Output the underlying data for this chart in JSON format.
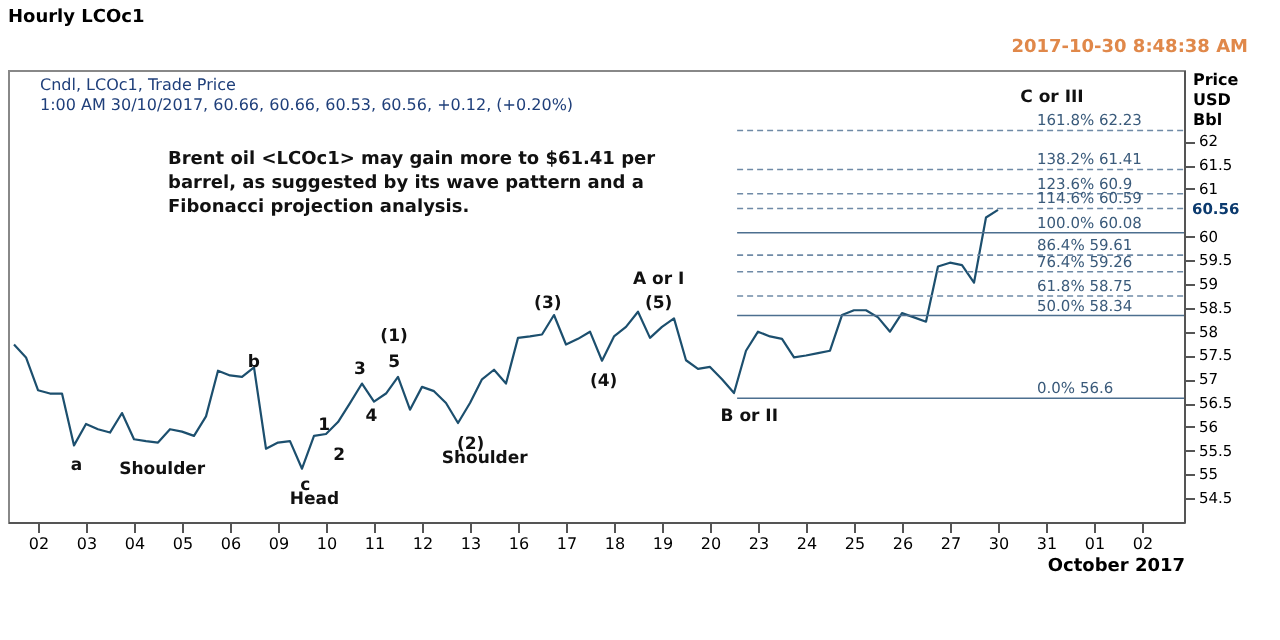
{
  "chart_data": {
    "type": "line",
    "title": "Hourly LCOc1",
    "subtitle": "Cndl, LCOc1, Trade Price",
    "xlabel": "October 2017",
    "ylabel": "Price USD Bbl",
    "categories": [
      null,
      null,
      "02",
      null,
      null,
      null,
      "03",
      null,
      null,
      null,
      "04",
      null,
      null,
      null,
      "05",
      null,
      null,
      null,
      "06",
      null,
      null,
      null,
      "09",
      null,
      null,
      null,
      "10",
      null,
      null,
      null,
      "11",
      null,
      null,
      null,
      "12",
      null,
      null,
      null,
      "13",
      null,
      null,
      null,
      "16",
      null,
      null,
      null,
      "17",
      null,
      null,
      null,
      "18",
      null,
      null,
      null,
      "19",
      null,
      null,
      null,
      "20",
      null,
      null,
      null,
      "23",
      null,
      null,
      null,
      "24",
      null,
      null,
      null,
      "25",
      null,
      null,
      null,
      "26",
      null,
      null,
      null,
      "27",
      null,
      null,
      null,
      "30",
      null,
      null,
      null,
      "31",
      null,
      null,
      null,
      "01",
      null,
      null,
      null,
      "02",
      null,
      null,
      null
    ],
    "series": [
      {
        "color": "#1c4f6e",
        "values": [
          57.73,
          57.46,
          56.77,
          56.7,
          56.7,
          55.61,
          56.06,
          55.95,
          55.88,
          56.29,
          55.74,
          55.7,
          55.67,
          55.95,
          55.9,
          55.81,
          56.22,
          57.18,
          57.08,
          57.05,
          57.25,
          55.54,
          55.67,
          55.7,
          55.12,
          55.81,
          55.85,
          56.1,
          56.5,
          56.91,
          56.53,
          56.7,
          57.05,
          56.36,
          56.84,
          56.75,
          56.5,
          56.08,
          56.5,
          57.0,
          57.2,
          56.91,
          57.87,
          57.9,
          57.94,
          58.35,
          57.73,
          57.85,
          58.0,
          57.39,
          57.9,
          58.1,
          58.42,
          57.87,
          58.1,
          58.28,
          57.4,
          57.22,
          57.26,
          57.0,
          56.71,
          57.6,
          58.0,
          57.9,
          57.85,
          57.46,
          57.5,
          57.55,
          57.6,
          58.35,
          58.45,
          58.45,
          58.3,
          58.0,
          58.39,
          58.3,
          58.21,
          59.37,
          59.45,
          59.4,
          59.03,
          60.4,
          60.56,
          null,
          null,
          null,
          null,
          null,
          null,
          null,
          null,
          null,
          null,
          null,
          null,
          null,
          null,
          null
        ]
      }
    ],
    "ylim": [
      54,
      63.5
    ],
    "yticks": [
      54.5,
      55,
      55.5,
      56,
      56.5,
      57,
      57.5,
      58,
      58.5,
      59,
      59.5,
      60,
      61,
      61.5,
      62
    ],
    "marker": "none",
    "line_style": "solid",
    "grid": false,
    "ref_lines": [
      {
        "axis": "y",
        "value": 62.23,
        "label": "161.8% 62.23",
        "color": "#6f8aa6",
        "line_style": "dashed"
      },
      {
        "axis": "y",
        "value": 61.41,
        "label": "138.2% 61.41",
        "color": "#6f8aa6",
        "line_style": "dashed"
      },
      {
        "axis": "y",
        "value": 60.9,
        "label": "123.6% 60.9",
        "color": "#6f8aa6",
        "line_style": "dashed"
      },
      {
        "axis": "y",
        "value": 60.59,
        "label": "114.6% 60.59",
        "color": "#6f8aa6",
        "line_style": "dashed"
      },
      {
        "axis": "y",
        "value": 60.08,
        "label": "100.0% 60.08",
        "color": "#4d6f8f",
        "line_style": "solid"
      },
      {
        "axis": "y",
        "value": 59.61,
        "label": "86.4% 59.61",
        "color": "#6f8aa6",
        "line_style": "dashed"
      },
      {
        "axis": "y",
        "value": 59.26,
        "label": "76.4% 59.26",
        "color": "#6f8aa6",
        "line_style": "dashed"
      },
      {
        "axis": "y",
        "value": 58.75,
        "label": "61.8% 58.75",
        "color": "#6f8aa6",
        "line_style": "dashed"
      },
      {
        "axis": "y",
        "value": 58.34,
        "label": "50.0% 58.34",
        "color": "#4d6f8f",
        "line_style": "solid"
      },
      {
        "axis": "y",
        "value": 56.6,
        "label": "0.0% 56.6",
        "color": "#4d6f8f",
        "line_style": "solid"
      }
    ],
    "annotations": [
      "Brent oil <LCOc1> may gain more to $61.41 per barrel, as suggested by its wave pattern and a Fibonacci projection analysis.",
      "1:00 AM 30/10/2017, 60.66, 60.66, 60.53, 60.56, +0.12, (+0.20%)",
      "2017-10-30 8:48:38 AM",
      "60.56",
      "a",
      "Shoulder",
      "b",
      "c",
      "Head",
      "1",
      "2",
      "3",
      "4",
      "5",
      "(1)",
      "(2)",
      "Shoulder",
      "(3)",
      "(4)",
      "A or I",
      "(5)",
      "B or II",
      "C or III"
    ]
  }
}
